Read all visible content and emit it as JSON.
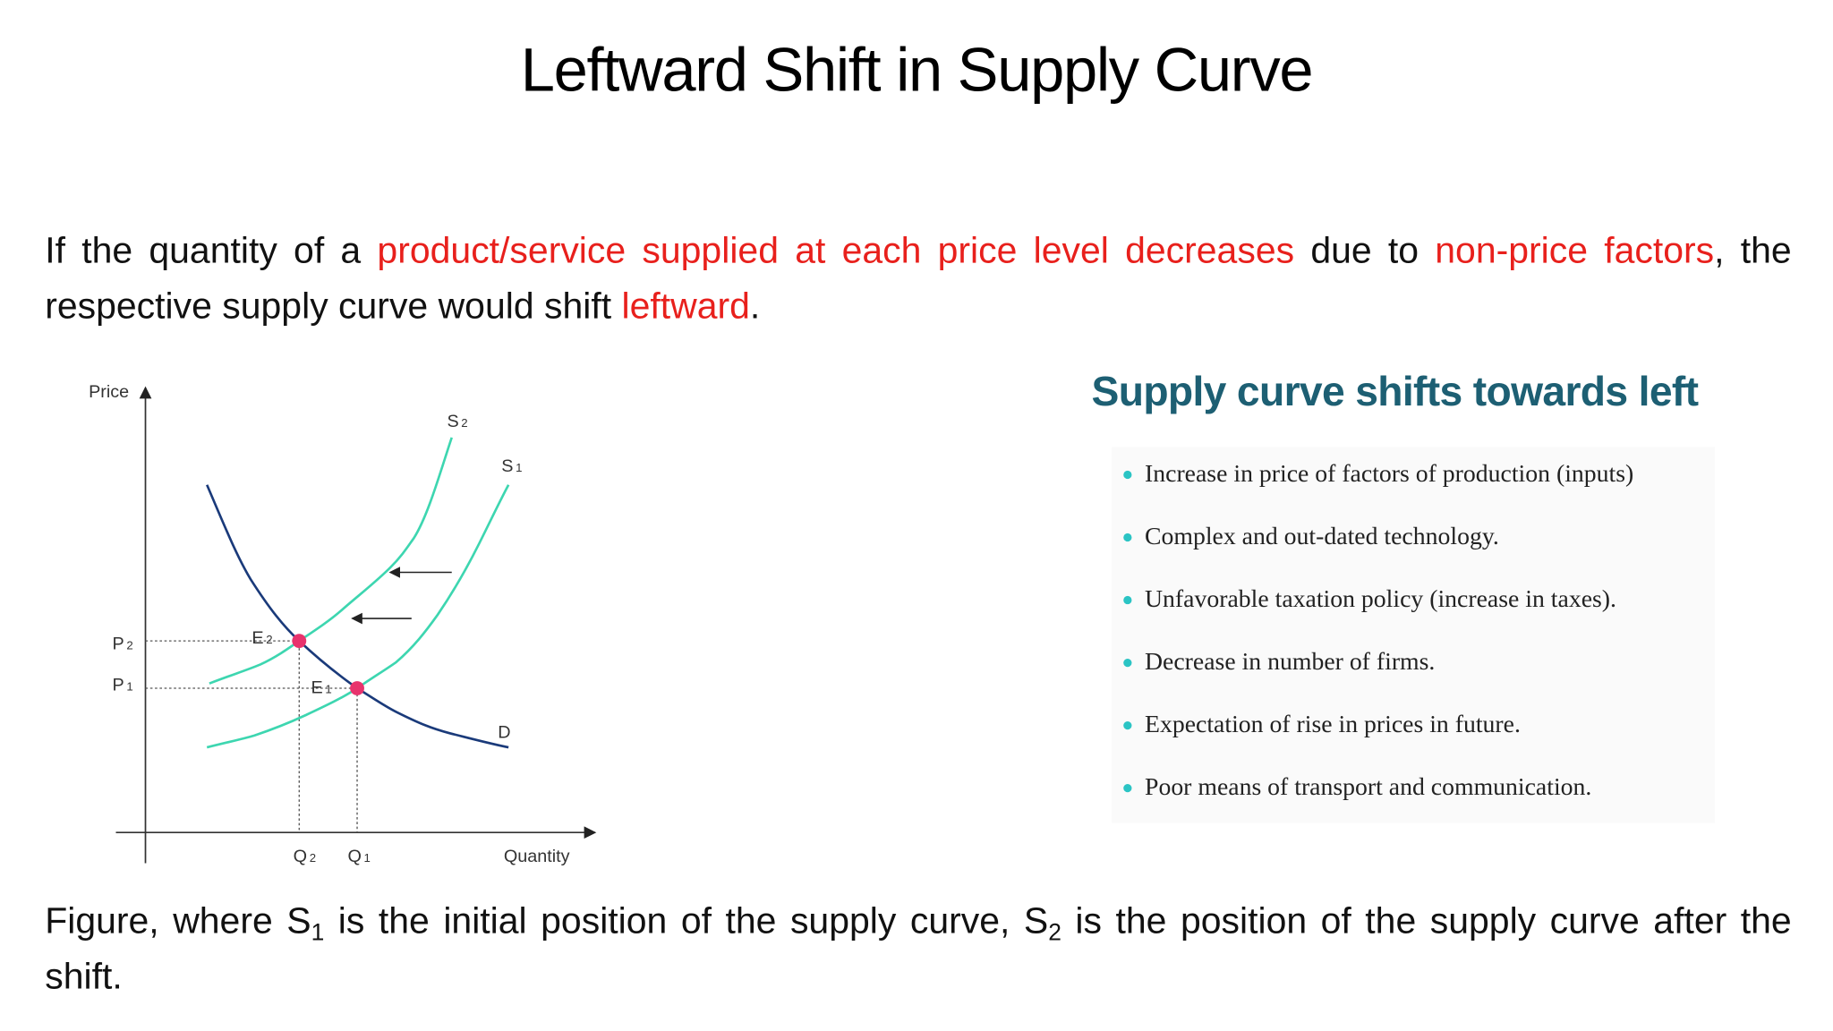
{
  "title": "Leftward Shift in Supply Curve",
  "intro": {
    "emphasis_color": "#e8201c",
    "segments": [
      {
        "text": "If the quantity of a ",
        "emphasis": false
      },
      {
        "text": "product/service supplied at each price level decreases",
        "emphasis": true
      },
      {
        "text": " due to ",
        "emphasis": false
      },
      {
        "text": "non-price factors",
        "emphasis": true
      },
      {
        "text": ", the respective supply curve would shift ",
        "emphasis": false
      },
      {
        "text": "leftward",
        "emphasis": true
      },
      {
        "text": ".",
        "emphasis": false
      }
    ]
  },
  "figure": {
    "price_axis": "Price",
    "quantity_axis": "Quantity",
    "labels": {
      "s2": {
        "main": "S",
        "sub": "2"
      },
      "s1": {
        "main": "S",
        "sub": "1"
      },
      "d": {
        "main": "D"
      },
      "e2": {
        "main": "E",
        "sub": "2"
      },
      "e1": {
        "main": "E",
        "sub": "1"
      },
      "p2": {
        "main": "P",
        "sub": "2"
      },
      "p1": {
        "main": "P",
        "sub": "1"
      },
      "q2": {
        "main": "Q",
        "sub": "2"
      },
      "q1": {
        "main": "Q",
        "sub": "1"
      }
    }
  },
  "panel": {
    "heading": "Supply curve shifts towards left",
    "bullets": [
      "Increase in price of factors of production (inputs)",
      "Complex and out-dated technology.",
      "Unfavorable taxation policy (increase in taxes).",
      "Decrease in number of firms.",
      "Expectation of rise in prices in future.",
      "Poor means of transport and communication."
    ]
  },
  "caption": {
    "segments": [
      {
        "text": "Figure, where S",
        "sub": false
      },
      {
        "text": "1",
        "sub": true
      },
      {
        "text": " is the initial position of the supply curve, S",
        "sub": false
      },
      {
        "text": "2",
        "sub": true
      },
      {
        "text": " is the position of the supply curve after the shift.",
        "sub": false
      }
    ]
  }
}
